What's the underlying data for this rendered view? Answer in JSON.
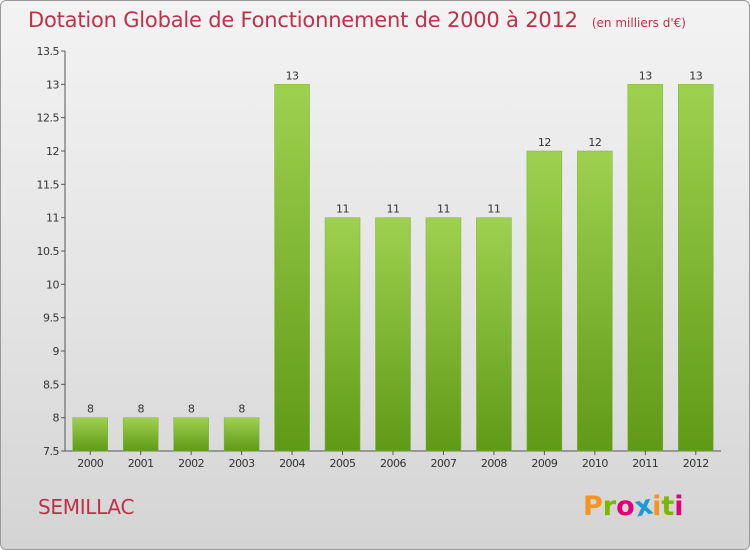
{
  "chart_data": {
    "type": "bar",
    "title": "Dotation Globale de Fonctionnement de 2000 à 2012",
    "subtitle": "(en milliers d'€)",
    "categories": [
      "2000",
      "2001",
      "2002",
      "2003",
      "2004",
      "2005",
      "2006",
      "2007",
      "2008",
      "2009",
      "2010",
      "2011",
      "2012"
    ],
    "values": [
      8,
      8,
      8,
      8,
      13,
      11,
      11,
      11,
      11,
      12,
      12,
      13,
      13
    ],
    "data_labels": [
      "8",
      "8",
      "8",
      "8",
      "13",
      "11",
      "11",
      "11",
      "11",
      "12",
      "12",
      "13",
      "13"
    ],
    "yticks": [
      "7.5",
      "8",
      "8.5",
      "9",
      "9.5",
      "10",
      "10.5",
      "11",
      "11.5",
      "12",
      "12.5",
      "13",
      "13.5"
    ],
    "ylim": [
      7.5,
      13.5
    ],
    "grid": false,
    "bar_color": "#8cc63f"
  },
  "commune": "SEMILLAC",
  "brand": {
    "letters": [
      "P",
      "r",
      "o",
      "x",
      "i",
      "t",
      "i"
    ],
    "colors": [
      "#f7941d",
      "#7ab800",
      "#e2007a",
      "#1a9ad6",
      "#f7941d",
      "#7ab800",
      "#e2007a"
    ]
  },
  "colors": {
    "title": "#c0304a",
    "axis": "#555555"
  }
}
